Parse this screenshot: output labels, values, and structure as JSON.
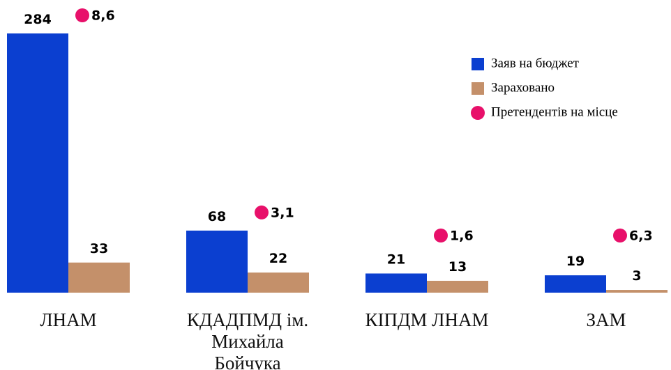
{
  "chart_data": {
    "type": "bar",
    "categories": [
      "ЛНАМ",
      "КДАДПМД ім. Михайла Бойчука",
      "КІПДМ ЛНАМ",
      "ЗАМ"
    ],
    "series": [
      {
        "name": "Заяв на бюджет",
        "color": "#0b3fd0",
        "values": [
          284,
          68,
          21,
          19
        ]
      },
      {
        "name": "Зараховано",
        "color": "#c4906a",
        "values": [
          33,
          22,
          13,
          3
        ]
      },
      {
        "name": "Претендентів на місце",
        "color": "#e8106a",
        "values": [
          8.6,
          3.1,
          1.6,
          6.3
        ],
        "value_labels": [
          "8,6",
          "3,1",
          "1,6",
          "6,3"
        ]
      }
    ]
  }
}
